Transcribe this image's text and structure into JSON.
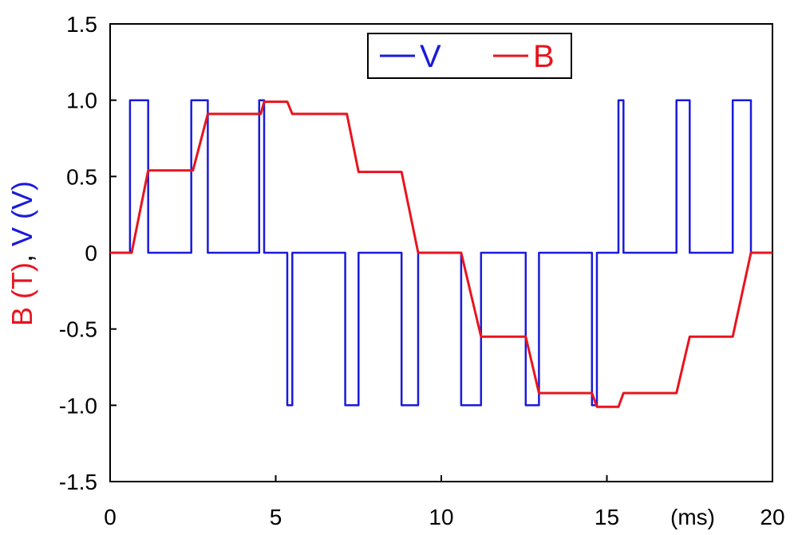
{
  "chart_data": {
    "type": "line",
    "title": "",
    "xlabel": "(ms)",
    "ylabel": {
      "parts": [
        {
          "text": "B (T)",
          "color": "#e8141e"
        },
        {
          "text": ", ",
          "color": "#000000"
        },
        {
          "text": "V (V)",
          "color": "#1a1adb"
        }
      ]
    },
    "xlim": [
      0,
      20
    ],
    "ylim": [
      -1.5,
      1.5
    ],
    "x_ticks": [
      0,
      5,
      10,
      15,
      20
    ],
    "x_tick_labels": [
      "0",
      "5",
      "10",
      "15",
      "20"
    ],
    "y_ticks": [
      1.5,
      1.0,
      0.5,
      0,
      -0.5,
      -1.0,
      -1.5
    ],
    "y_tick_labels": [
      "1.5",
      "1.0",
      "0.5",
      "0",
      "-0.5",
      "-1.0",
      "-1.5"
    ],
    "grid": false,
    "legend": {
      "placement": "top-center",
      "entries": [
        "V",
        "B"
      ]
    },
    "series": [
      {
        "name": "V",
        "color": "#1a1adb",
        "step": true,
        "points": [
          [
            0,
            0
          ],
          [
            0.6,
            0
          ],
          [
            0.6,
            1
          ],
          [
            1.15,
            1
          ],
          [
            1.15,
            0
          ],
          [
            2.45,
            0
          ],
          [
            2.45,
            1
          ],
          [
            2.95,
            1
          ],
          [
            2.95,
            0
          ],
          [
            4.5,
            0
          ],
          [
            4.5,
            1
          ],
          [
            4.65,
            1
          ],
          [
            4.65,
            0
          ],
          [
            5.35,
            0
          ],
          [
            5.35,
            -1
          ],
          [
            5.5,
            -1
          ],
          [
            5.5,
            0
          ],
          [
            7.1,
            0
          ],
          [
            7.1,
            -1
          ],
          [
            7.5,
            -1
          ],
          [
            7.5,
            0
          ],
          [
            8.8,
            0
          ],
          [
            8.8,
            -1
          ],
          [
            9.3,
            -1
          ],
          [
            9.3,
            0
          ],
          [
            10.6,
            0
          ],
          [
            10.6,
            -1
          ],
          [
            11.2,
            -1
          ],
          [
            11.2,
            0
          ],
          [
            12.55,
            0
          ],
          [
            12.55,
            -1
          ],
          [
            12.95,
            -1
          ],
          [
            12.95,
            0
          ],
          [
            14.55,
            0
          ],
          [
            14.55,
            -1
          ],
          [
            14.7,
            -1
          ],
          [
            14.7,
            0
          ],
          [
            15.35,
            0
          ],
          [
            15.35,
            1
          ],
          [
            15.5,
            1
          ],
          [
            15.5,
            0
          ],
          [
            17.1,
            0
          ],
          [
            17.1,
            1
          ],
          [
            17.5,
            1
          ],
          [
            17.5,
            0
          ],
          [
            18.8,
            0
          ],
          [
            18.8,
            1
          ],
          [
            19.35,
            1
          ],
          [
            19.35,
            0
          ],
          [
            20,
            0
          ]
        ]
      },
      {
        "name": "B",
        "color": "#e8141e",
        "step": false,
        "points": [
          [
            0,
            0
          ],
          [
            0.65,
            0
          ],
          [
            1.15,
            0.54
          ],
          [
            2.5,
            0.54
          ],
          [
            2.95,
            0.91
          ],
          [
            4.55,
            0.91
          ],
          [
            4.65,
            0.99
          ],
          [
            5.35,
            0.99
          ],
          [
            5.5,
            0.91
          ],
          [
            7.15,
            0.91
          ],
          [
            7.5,
            0.53
          ],
          [
            8.8,
            0.53
          ],
          [
            9.3,
            0
          ],
          [
            10.6,
            0
          ],
          [
            11.2,
            -0.55
          ],
          [
            12.55,
            -0.55
          ],
          [
            12.95,
            -0.92
          ],
          [
            14.55,
            -0.92
          ],
          [
            14.7,
            -1.01
          ],
          [
            15.35,
            -1.01
          ],
          [
            15.5,
            -0.92
          ],
          [
            17.1,
            -0.92
          ],
          [
            17.5,
            -0.55
          ],
          [
            18.8,
            -0.55
          ],
          [
            19.35,
            0
          ],
          [
            20,
            0
          ]
        ]
      }
    ]
  }
}
